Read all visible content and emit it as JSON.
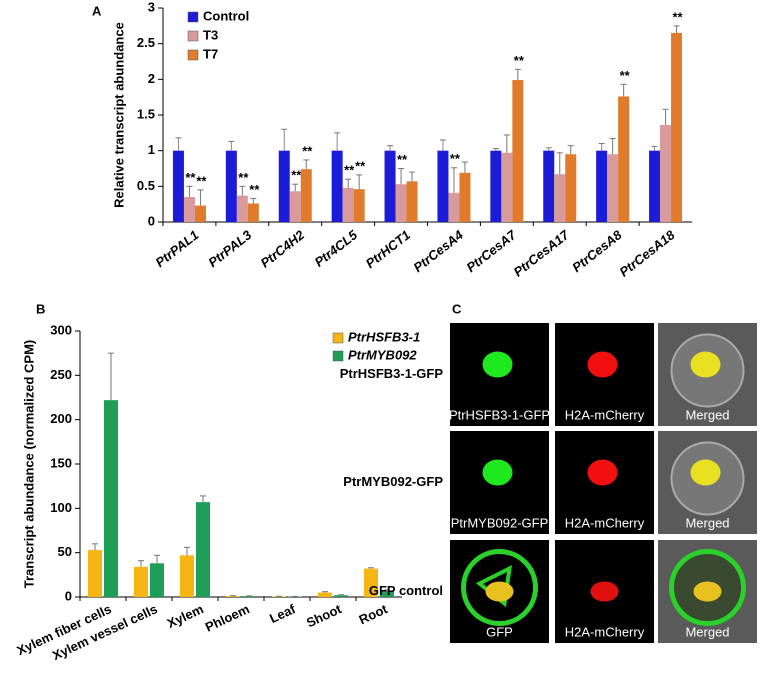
{
  "chart_data": [
    {
      "type": "bar",
      "panel_label": "A",
      "ylabel": "Relative transcript abundance",
      "categories": [
        "PtrPAL1",
        "PtrPAL3",
        "PtrC4H2",
        "Ptr4CL5",
        "PtrHCT1",
        "PtrCesA4",
        "PtrCesA7",
        "PtrCesA17",
        "PtrCesA8",
        "PtrCesA18"
      ],
      "series": [
        {
          "name": "Control",
          "color": "#1c1cd8",
          "values": [
            1,
            1,
            1,
            1,
            1,
            1,
            1,
            1,
            1,
            1
          ],
          "errors": [
            0.18,
            0.13,
            0.3,
            0.25,
            0.07,
            0.15,
            0.03,
            0.04,
            0.1,
            0.06
          ],
          "significance": [
            null,
            null,
            null,
            null,
            null,
            null,
            null,
            null,
            null,
            null
          ]
        },
        {
          "name": "T3",
          "color": "#d89a9a",
          "values": [
            0.35,
            0.37,
            0.43,
            0.48,
            0.53,
            0.41,
            0.97,
            0.67,
            0.95,
            1.36
          ],
          "errors": [
            0.15,
            0.13,
            0.1,
            0.12,
            0.22,
            0.35,
            0.25,
            0.3,
            0.22,
            0.22
          ],
          "significance": [
            "**",
            "**",
            "**",
            "**",
            "**",
            "**",
            null,
            null,
            null,
            null
          ]
        },
        {
          "name": "T7",
          "color": "#e07b2c",
          "values": [
            0.23,
            0.26,
            0.74,
            0.46,
            0.57,
            0.69,
            1.99,
            0.95,
            1.76,
            2.65
          ],
          "errors": [
            0.22,
            0.07,
            0.13,
            0.2,
            0.13,
            0.15,
            0.15,
            0.12,
            0.17,
            0.1
          ],
          "significance": [
            "**",
            "**",
            "**",
            "**",
            null,
            null,
            "**",
            null,
            "**",
            "**"
          ]
        }
      ],
      "ylim": [
        0,
        3
      ],
      "yticks": [
        0,
        0.5,
        1,
        1.5,
        2,
        2.5,
        3
      ],
      "grid": false,
      "legend": "upper left"
    },
    {
      "type": "bar",
      "panel_label": "B",
      "ylabel": "Transcript abundance (normalized CPM)",
      "categories": [
        "Xylem fiber cells",
        "Xylem vessel cells",
        "Xylem",
        "Phloem",
        "Leaf",
        "Shoot",
        "Root"
      ],
      "series": [
        {
          "name": "PtrHSFB3-1",
          "color": "#f5b614",
          "values": [
            53,
            34,
            47,
            1,
            0.5,
            5,
            32
          ],
          "errors": [
            7,
            7,
            9,
            0.5,
            0.3,
            1,
            1
          ]
        },
        {
          "name": "PtrMYB092",
          "color": "#1f9e58",
          "values": [
            222,
            38,
            107,
            1,
            0.5,
            2,
            7
          ],
          "errors": [
            53,
            9,
            7,
            0.3,
            0.2,
            0.5,
            1
          ]
        }
      ],
      "ylim": [
        0,
        300
      ],
      "yticks": [
        0,
        50,
        100,
        150,
        200,
        250,
        300
      ],
      "grid": false,
      "legend": "upper right"
    }
  ],
  "panel_c": {
    "panel_label": "C",
    "rows": [
      {
        "label": "PtrHSFB3-1-GFP",
        "captions": [
          "PtrHSFB3-1-GFP",
          "H2A-mCherry",
          "Merged"
        ]
      },
      {
        "label": "PtrMYB092-GFP",
        "captions": [
          "PtrMYB092-GFP",
          "H2A-mCherry",
          "Merged"
        ]
      },
      {
        "label": "GFP control",
        "captions": [
          "GFP",
          "H2A-mCherry",
          "Merged"
        ]
      }
    ]
  }
}
